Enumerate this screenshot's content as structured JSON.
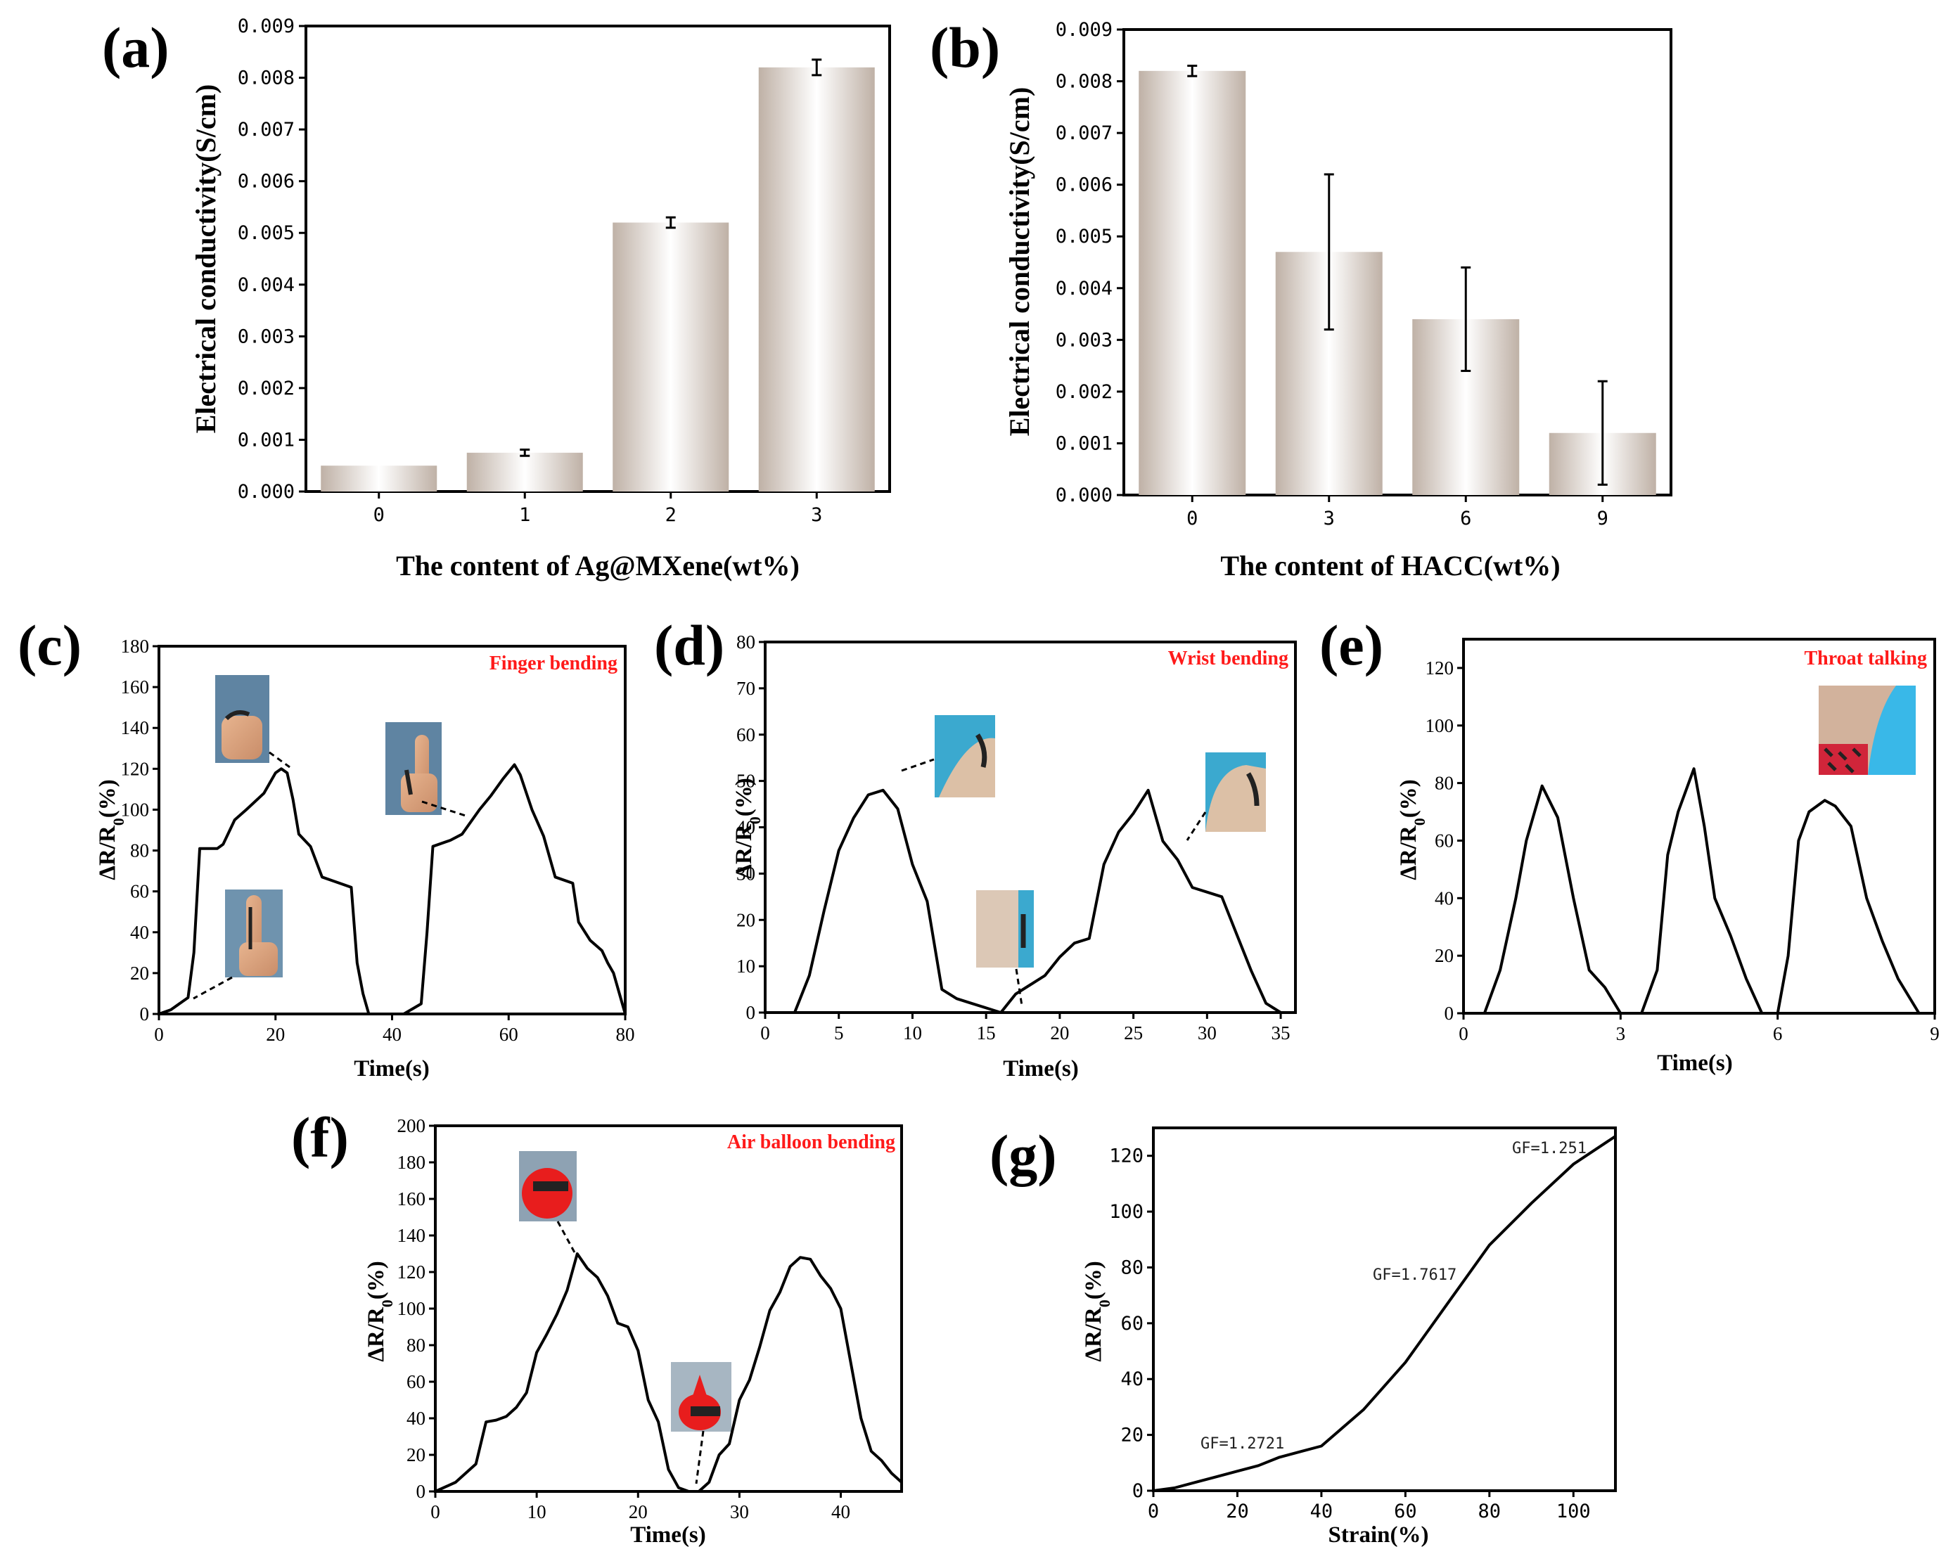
{
  "colors": {
    "bar_light": "#ffffff",
    "bar_dark": "#bfb1a6",
    "line": "#000000",
    "annotation": "#ff1a1a"
  },
  "chart_data": [
    {
      "id": "a",
      "panel_label": "(a)",
      "type": "bar",
      "categories": [
        "0",
        "1",
        "2",
        "3"
      ],
      "values": [
        0.0005,
        0.00075,
        0.0052,
        0.0082
      ],
      "errors": [
        0,
        6e-05,
        0.0001,
        0.00015
      ],
      "xlabel": "The content of Ag@MXene(wt%)",
      "ylabel": "Electrical conductivity(S/cm)",
      "ylim": [
        0,
        0.009
      ],
      "yticks": [
        "0.000",
        "0.001",
        "0.002",
        "0.003",
        "0.004",
        "0.005",
        "0.006",
        "0.007",
        "0.008",
        "0.009"
      ]
    },
    {
      "id": "b",
      "panel_label": "(b)",
      "type": "bar",
      "categories": [
        "0",
        "3",
        "6",
        "9"
      ],
      "values": [
        0.0082,
        0.0047,
        0.0034,
        0.0012
      ],
      "errors": [
        0.0001,
        0.0015,
        0.001,
        0.001
      ],
      "xlabel": "The content of HACC(wt%)",
      "ylabel": "Electrical conductivity(S/cm)",
      "ylim": [
        0,
        0.009
      ],
      "yticks": [
        "0.000",
        "0.001",
        "0.002",
        "0.003",
        "0.004",
        "0.005",
        "0.006",
        "0.007",
        "0.008",
        "0.009"
      ]
    },
    {
      "id": "c",
      "panel_label": "(c)",
      "type": "line",
      "annotation": "Finger bending",
      "xlabel": "Time(s)",
      "ylabel": "ΔR/R",
      "xlim": [
        0,
        80
      ],
      "ylim": [
        0,
        180
      ],
      "xticks": [
        0,
        20,
        40,
        60,
        80
      ],
      "yticks": [
        0,
        20,
        40,
        60,
        80,
        100,
        120,
        140,
        160,
        180
      ],
      "x": [
        0,
        2,
        5,
        6,
        7,
        10,
        11,
        13,
        15,
        18,
        20,
        21,
        22,
        23,
        24,
        26,
        28,
        30,
        33,
        34,
        35,
        36,
        38,
        40,
        42,
        45,
        46,
        47,
        50,
        52,
        55,
        57,
        59,
        61,
        62,
        64,
        66,
        68,
        71,
        72,
        74,
        76,
        77,
        78,
        79,
        80
      ],
      "y": [
        0,
        2,
        8,
        30,
        81,
        81,
        83,
        95,
        100,
        108,
        118,
        120,
        118,
        105,
        88,
        82,
        67,
        65,
        62,
        25,
        10,
        0,
        0,
        0,
        0,
        5,
        40,
        82,
        85,
        88,
        100,
        107,
        115,
        122,
        117,
        100,
        87,
        67,
        64,
        45,
        36,
        31,
        25,
        20,
        10,
        0
      ]
    },
    {
      "id": "d",
      "panel_label": "(d)",
      "type": "line",
      "annotation": "Wrist bending",
      "xlabel": "Time(s)",
      "ylabel": "ΔR/R",
      "xlim": [
        0,
        36
      ],
      "ylim": [
        0,
        80
      ],
      "xticks": [
        0,
        5,
        10,
        15,
        20,
        25,
        30,
        35
      ],
      "yticks": [
        0,
        10,
        20,
        30,
        40,
        50,
        60,
        70,
        80
      ],
      "x": [
        0,
        2,
        3,
        4,
        5,
        6,
        7,
        8,
        9,
        10,
        11,
        12,
        13,
        14,
        15,
        16,
        17,
        18,
        19,
        20,
        21,
        22,
        23,
        24,
        25,
        26,
        27,
        28,
        29,
        30,
        31,
        32,
        33,
        34,
        35
      ],
      "y": [
        0,
        0,
        8,
        22,
        35,
        42,
        47,
        48,
        44,
        32,
        24,
        5,
        3,
        2,
        1,
        0,
        4,
        6,
        8,
        12,
        15,
        16,
        32,
        39,
        43,
        48,
        37,
        33,
        27,
        26,
        25,
        17,
        9,
        2,
        0
      ]
    },
    {
      "id": "e",
      "panel_label": "(e)",
      "type": "line",
      "annotation": "Throat  talking",
      "xlabel": "Time(s)",
      "ylabel": "ΔR/R",
      "xlim": [
        0,
        9
      ],
      "ylim": [
        0,
        130
      ],
      "xticks": [
        0,
        3,
        6,
        9
      ],
      "yticks": [
        0,
        20,
        40,
        60,
        80,
        100,
        120
      ],
      "x": [
        0,
        0.4,
        0.7,
        1.0,
        1.2,
        1.5,
        1.8,
        2.1,
        2.4,
        2.7,
        3.0,
        3.4,
        3.7,
        3.9,
        4.1,
        4.4,
        4.6,
        4.8,
        5.1,
        5.4,
        5.7,
        6.0,
        6.2,
        6.4,
        6.6,
        6.9,
        7.1,
        7.4,
        7.7,
        8.0,
        8.3,
        8.7,
        9.0
      ],
      "y": [
        0,
        0,
        15,
        40,
        60,
        79,
        68,
        40,
        15,
        9,
        0,
        0,
        15,
        55,
        70,
        85,
        65,
        40,
        27,
        12,
        0,
        0,
        20,
        60,
        70,
        74,
        72,
        65,
        40,
        25,
        12,
        0,
        0
      ]
    },
    {
      "id": "f",
      "panel_label": "(f)",
      "type": "line",
      "annotation": "Air balloon bending",
      "xlabel": "Time(s)",
      "ylabel": "ΔR/R",
      "xlim": [
        0,
        46
      ],
      "ylim": [
        0,
        200
      ],
      "xticks": [
        0,
        10,
        20,
        30,
        40
      ],
      "yticks": [
        0,
        20,
        40,
        60,
        80,
        100,
        120,
        140,
        160,
        180,
        200
      ],
      "x": [
        0,
        2,
        4,
        5,
        6,
        7,
        8,
        9,
        10,
        11,
        12,
        13,
        14,
        15,
        16,
        17,
        18,
        19,
        20,
        21,
        22,
        23,
        24,
        25,
        26,
        27,
        28,
        29,
        30,
        31,
        32,
        33,
        34,
        35,
        36,
        37,
        38,
        39,
        40,
        41,
        42,
        43,
        44,
        45,
        46
      ],
      "y": [
        0,
        5,
        15,
        38,
        39,
        41,
        46,
        54,
        76,
        86,
        97,
        110,
        130,
        122,
        117,
        107,
        92,
        90,
        77,
        50,
        38,
        12,
        2,
        0,
        0,
        5,
        20,
        26,
        50,
        61,
        79,
        99,
        109,
        123,
        128,
        127,
        118,
        111,
        100,
        70,
        40,
        22,
        17,
        10,
        5
      ]
    },
    {
      "id": "g",
      "panel_label": "(g)",
      "type": "line",
      "xlabel": "Strain(%)",
      "ylabel": "ΔR/R",
      "xlim": [
        0,
        110
      ],
      "ylim": [
        0,
        130
      ],
      "xticks": [
        0,
        20,
        40,
        60,
        80,
        100
      ],
      "yticks": [
        0,
        20,
        40,
        60,
        80,
        100,
        120
      ],
      "x": [
        0,
        5,
        10,
        15,
        20,
        25,
        30,
        35,
        40,
        50,
        60,
        70,
        80,
        90,
        100,
        110
      ],
      "y": [
        0,
        1,
        3,
        5,
        7,
        9,
        12,
        14,
        16,
        29,
        46,
        67,
        88,
        103,
        117,
        127
      ],
      "annotations": [
        "GF=1.2721",
        "GF=1.7617",
        "GF=1.251"
      ]
    }
  ]
}
